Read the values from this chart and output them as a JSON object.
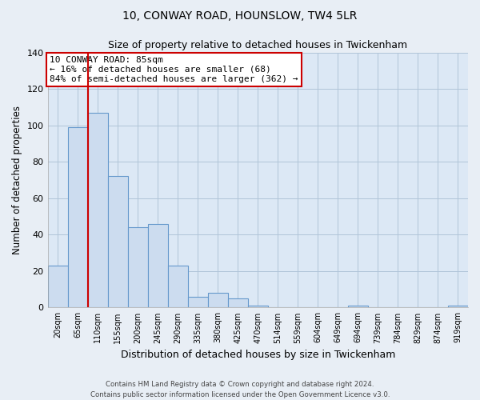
{
  "title": "10, CONWAY ROAD, HOUNSLOW, TW4 5LR",
  "subtitle": "Size of property relative to detached houses in Twickenham",
  "xlabel": "Distribution of detached houses by size in Twickenham",
  "ylabel": "Number of detached properties",
  "bar_labels": [
    "20sqm",
    "65sqm",
    "110sqm",
    "155sqm",
    "200sqm",
    "245sqm",
    "290sqm",
    "335sqm",
    "380sqm",
    "425sqm",
    "470sqm",
    "514sqm",
    "559sqm",
    "604sqm",
    "649sqm",
    "694sqm",
    "739sqm",
    "784sqm",
    "829sqm",
    "874sqm",
    "919sqm"
  ],
  "bar_values": [
    23,
    99,
    107,
    72,
    44,
    46,
    23,
    6,
    8,
    5,
    1,
    0,
    0,
    0,
    0,
    1,
    0,
    0,
    0,
    0,
    1
  ],
  "bar_color": "#ccdcef",
  "bar_edge_color": "#6699cc",
  "vline_x": 1.5,
  "vline_color": "#cc0000",
  "ylim": [
    0,
    140
  ],
  "yticks": [
    0,
    20,
    40,
    60,
    80,
    100,
    120,
    140
  ],
  "annotation_box_text": "10 CONWAY ROAD: 85sqm\n← 16% of detached houses are smaller (68)\n84% of semi-detached houses are larger (362) →",
  "footer_line1": "Contains HM Land Registry data © Crown copyright and database right 2024.",
  "footer_line2": "Contains public sector information licensed under the Open Government Licence v3.0.",
  "bg_color": "#e8eef5",
  "plot_bg_color": "#dce8f5",
  "grid_color": "#b0c4d8",
  "annotation_box_color": "#ffffff",
  "annotation_box_edge_color": "#cc0000"
}
